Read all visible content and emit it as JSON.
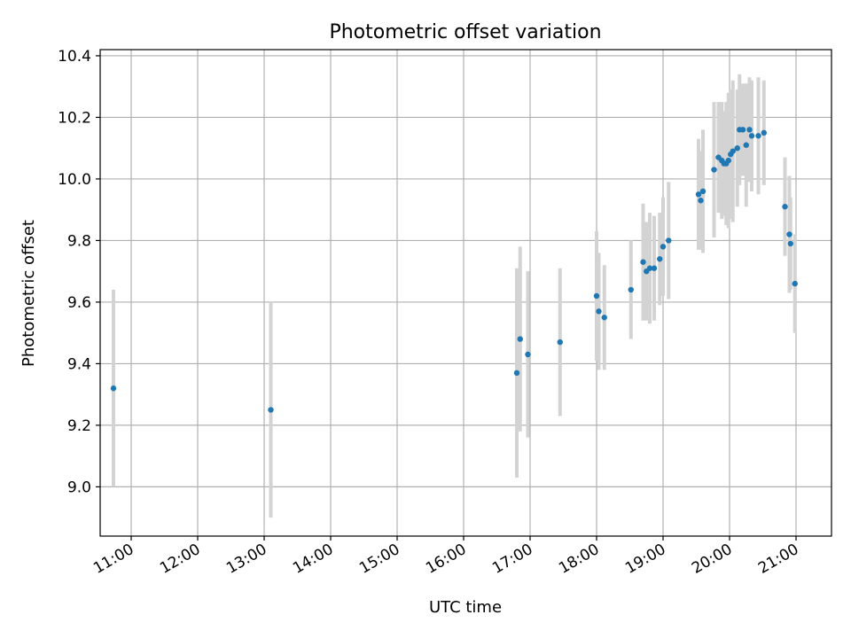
{
  "colors": {
    "point": "#1f77b4",
    "errorbar": "#d3d3d3",
    "grid": "#b0b0b0",
    "background": "#ffffff"
  },
  "chart_data": {
    "type": "scatter",
    "title": "Photometric offset variation",
    "xlabel": "UTC time",
    "ylabel": "Photometric offset",
    "grid": true,
    "xlim": [
      "10:32",
      "21:32"
    ],
    "ylim": [
      8.84,
      10.42
    ],
    "x_ticks": [
      "11:00",
      "12:00",
      "13:00",
      "14:00",
      "15:00",
      "16:00",
      "17:00",
      "18:00",
      "19:00",
      "20:00",
      "21:00"
    ],
    "y_ticks": [
      "9.0",
      "9.2",
      "9.4",
      "9.6",
      "9.8",
      "10.0",
      "10.2",
      "10.4"
    ],
    "series": [
      {
        "points": [
          {
            "x": "10:44",
            "y": 9.32,
            "yerr": 0.32
          },
          {
            "x": "13:06",
            "y": 9.25,
            "yerr": 0.35
          },
          {
            "x": "16:48",
            "y": 9.37,
            "yerr": 0.34
          },
          {
            "x": "16:51",
            "y": 9.48,
            "yerr": 0.3
          },
          {
            "x": "16:58",
            "y": 9.43,
            "yerr": 0.27
          },
          {
            "x": "17:27",
            "y": 9.47,
            "yerr": 0.24
          },
          {
            "x": "18:00",
            "y": 9.62,
            "yerr": 0.21
          },
          {
            "x": "18:02",
            "y": 9.57,
            "yerr": 0.19
          },
          {
            "x": "18:07",
            "y": 9.55,
            "yerr": 0.17
          },
          {
            "x": "18:31",
            "y": 9.64,
            "yerr": 0.16
          },
          {
            "x": "18:42",
            "y": 9.73,
            "yerr": 0.19
          },
          {
            "x": "18:45",
            "y": 9.7,
            "yerr": 0.16
          },
          {
            "x": "18:48",
            "y": 9.71,
            "yerr": 0.18
          },
          {
            "x": "18:52",
            "y": 9.71,
            "yerr": 0.17
          },
          {
            "x": "18:57",
            "y": 9.74,
            "yerr": 0.15
          },
          {
            "x": "19:00",
            "y": 9.78,
            "yerr": 0.16
          },
          {
            "x": "19:05",
            "y": 9.8,
            "yerr": 0.19
          },
          {
            "x": "19:32",
            "y": 9.95,
            "yerr": 0.18
          },
          {
            "x": "19:34",
            "y": 9.93,
            "yerr": 0.16
          },
          {
            "x": "19:36",
            "y": 9.96,
            "yerr": 0.2
          },
          {
            "x": "19:46",
            "y": 10.03,
            "yerr": 0.22
          },
          {
            "x": "19:50",
            "y": 10.07,
            "yerr": 0.18
          },
          {
            "x": "19:53",
            "y": 10.06,
            "yerr": 0.19
          },
          {
            "x": "19:55",
            "y": 10.05,
            "yerr": 0.17
          },
          {
            "x": "19:57",
            "y": 10.05,
            "yerr": 0.2
          },
          {
            "x": "19:59",
            "y": 10.06,
            "yerr": 0.22
          },
          {
            "x": "20:01",
            "y": 10.08,
            "yerr": 0.21
          },
          {
            "x": "20:03",
            "y": 10.09,
            "yerr": 0.23
          },
          {
            "x": "20:07",
            "y": 10.1,
            "yerr": 0.19
          },
          {
            "x": "20:09",
            "y": 10.16,
            "yerr": 0.18
          },
          {
            "x": "20:12",
            "y": 10.16,
            "yerr": 0.15
          },
          {
            "x": "20:15",
            "y": 10.11,
            "yerr": 0.2
          },
          {
            "x": "20:18",
            "y": 10.16,
            "yerr": 0.17
          },
          {
            "x": "20:20",
            "y": 10.14,
            "yerr": 0.18
          },
          {
            "x": "20:26",
            "y": 10.14,
            "yerr": 0.19
          },
          {
            "x": "20:31",
            "y": 10.15,
            "yerr": 0.17
          },
          {
            "x": "20:50",
            "y": 9.91,
            "yerr": 0.16
          },
          {
            "x": "20:54",
            "y": 9.82,
            "yerr": 0.19
          },
          {
            "x": "20:55",
            "y": 9.79,
            "yerr": 0.15
          },
          {
            "x": "20:59",
            "y": 9.66,
            "yerr": 0.16
          }
        ]
      }
    ]
  }
}
